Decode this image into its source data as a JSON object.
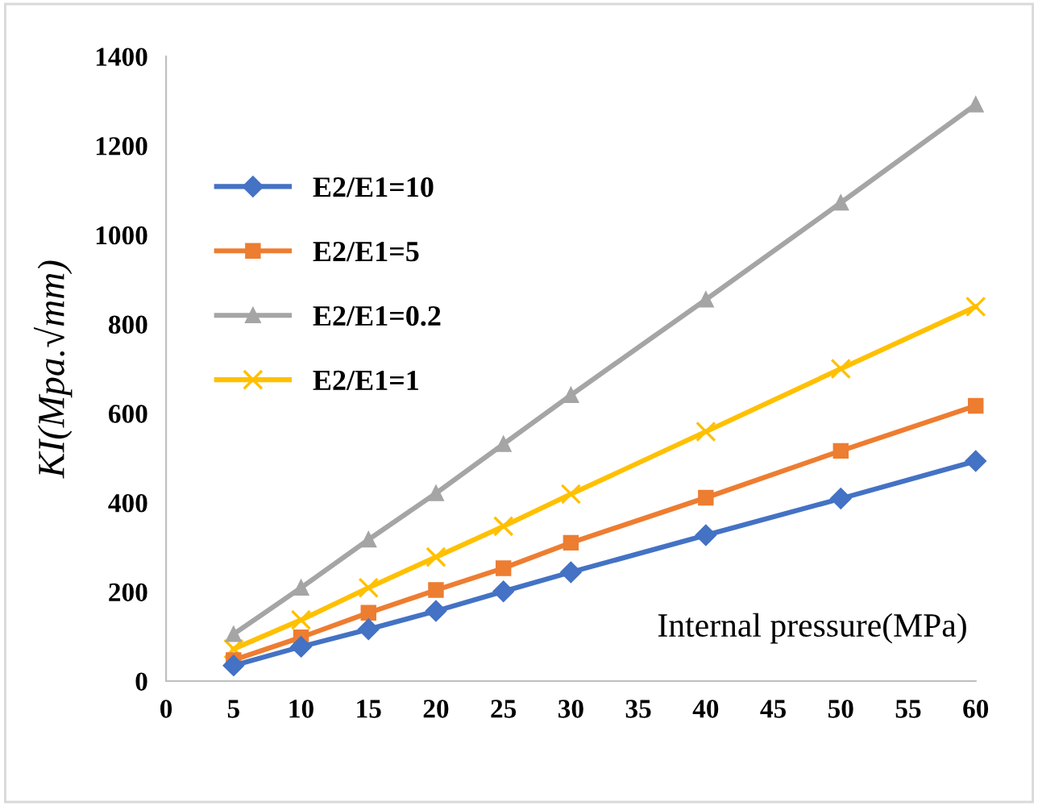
{
  "chart_data": {
    "type": "line",
    "xlabel": "Internal pressure(MPa)",
    "ylabel": "KI(Mpa.√mm)",
    "x": [
      5,
      10,
      15,
      20,
      25,
      30,
      40,
      50,
      60
    ],
    "xlim": [
      0,
      60
    ],
    "xticks": [
      0,
      5,
      10,
      15,
      20,
      25,
      30,
      35,
      40,
      45,
      50,
      55,
      60
    ],
    "ylim": [
      0,
      1400
    ],
    "yticks": [
      0,
      200,
      400,
      600,
      800,
      1000,
      1200,
      1400
    ],
    "grid": false,
    "legend": "top left",
    "series": [
      {
        "name": "E2/E1=10",
        "color": "#4472c4",
        "marker": "diamond",
        "values": [
          35,
          77,
          116,
          157,
          201,
          244,
          327,
          409,
          493
        ]
      },
      {
        "name": "E2/E1=5",
        "color": "#ed7d31",
        "marker": "square",
        "values": [
          47,
          98,
          153,
          204,
          253,
          310,
          411,
          516,
          617
        ]
      },
      {
        "name": "E2/E1=0.2",
        "color": "#a5a5a5",
        "marker": "triangle",
        "values": [
          105,
          209,
          317,
          421,
          531,
          641,
          855,
          1072,
          1292
        ]
      },
      {
        "name": "E2/E1=1",
        "color": "#ffc000",
        "marker": "cross",
        "values": [
          72,
          137,
          209,
          278,
          347,
          419,
          559,
          700,
          839
        ]
      }
    ]
  }
}
